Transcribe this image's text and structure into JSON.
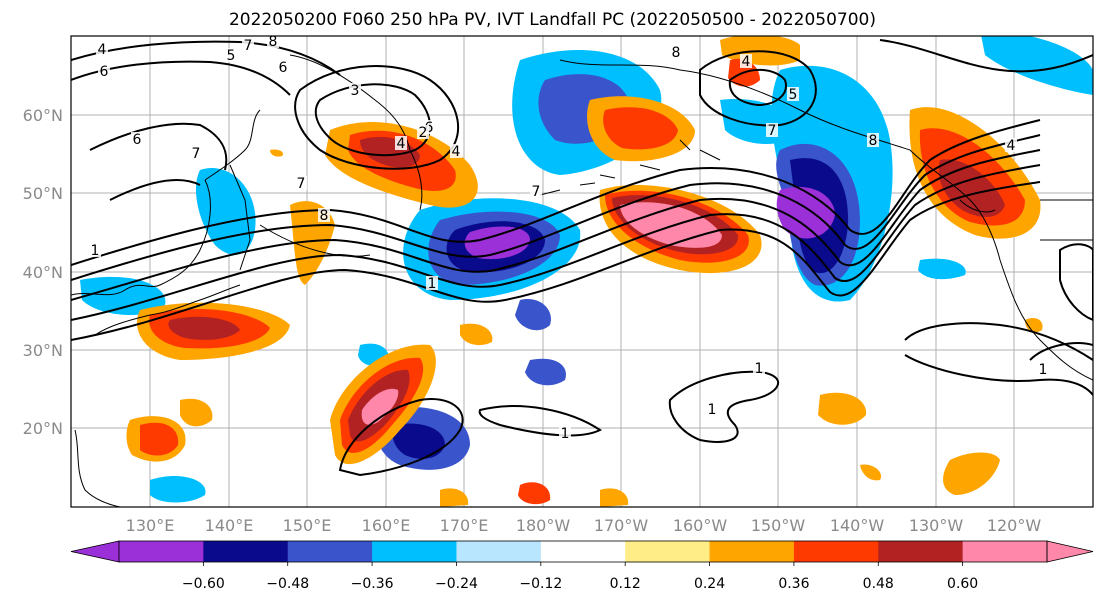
{
  "title": "2022050200 F060 250 hPa PV, IVT Landfall PC (2022050500 - 2022050700)",
  "map": {
    "latitude_labels": [
      "60°N",
      "50°N",
      "40°N",
      "30°N",
      "20°N"
    ],
    "longitude_labels": [
      "130°E",
      "140°E",
      "150°E",
      "160°E",
      "170°E",
      "180°W",
      "170°W",
      "160°W",
      "150°W",
      "140°W",
      "130°W",
      "120°W"
    ],
    "pv_contour_labels": [
      "4",
      "8",
      "6",
      "5",
      "7",
      "6",
      "4",
      "3",
      "6",
      "4",
      "7",
      "8",
      "7",
      "6",
      "1",
      "2",
      "7",
      "8",
      "1",
      "4",
      "1",
      "7",
      "5",
      "1",
      "8",
      "4",
      "1",
      "1"
    ],
    "shading_colors": {
      "strong_negative": "#9b30d8",
      "negative_dark": "#0a0a8c",
      "negative_mid": "#3a55cc",
      "negative_light": "#00bfff",
      "negative_faint": "#b8e6ff",
      "positive_faint": "#ffee88",
      "positive_light": "#ffa500",
      "positive_mid": "#ff3a00",
      "positive_dark": "#b22222",
      "strong_positive": "#ff88aa"
    }
  },
  "colorbar": {
    "tick_labels": [
      "−0.60",
      "−0.48",
      "−0.36",
      "−0.24",
      "−0.12",
      "0.12",
      "0.24",
      "0.36",
      "0.48",
      "0.60"
    ],
    "colors": [
      "#9b30d8",
      "#0a0a8c",
      "#3a55cc",
      "#00bfff",
      "#b8e6ff",
      "#ffffff",
      "#ffee88",
      "#ffa500",
      "#ff3a00",
      "#b22222",
      "#ff88aa"
    ]
  }
}
